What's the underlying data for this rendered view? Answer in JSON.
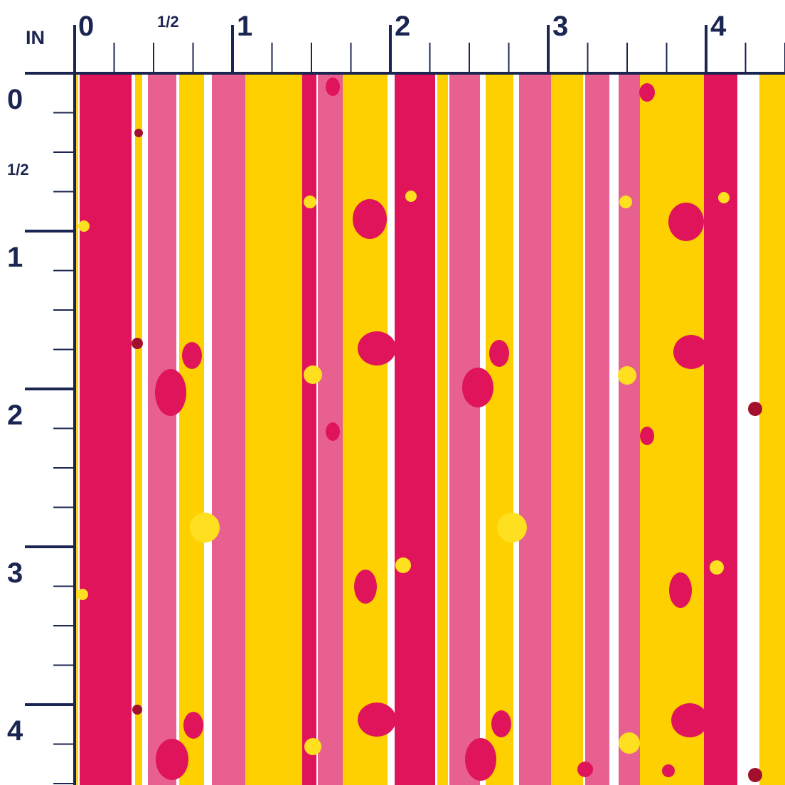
{
  "ruler_unit": "IN",
  "top_ruler": {
    "labels": [
      "0",
      "1/2",
      "1",
      "2",
      "3",
      "4"
    ]
  },
  "left_ruler": {
    "labels": [
      "0",
      "1/2",
      "1",
      "2",
      "3",
      "4"
    ]
  }
}
